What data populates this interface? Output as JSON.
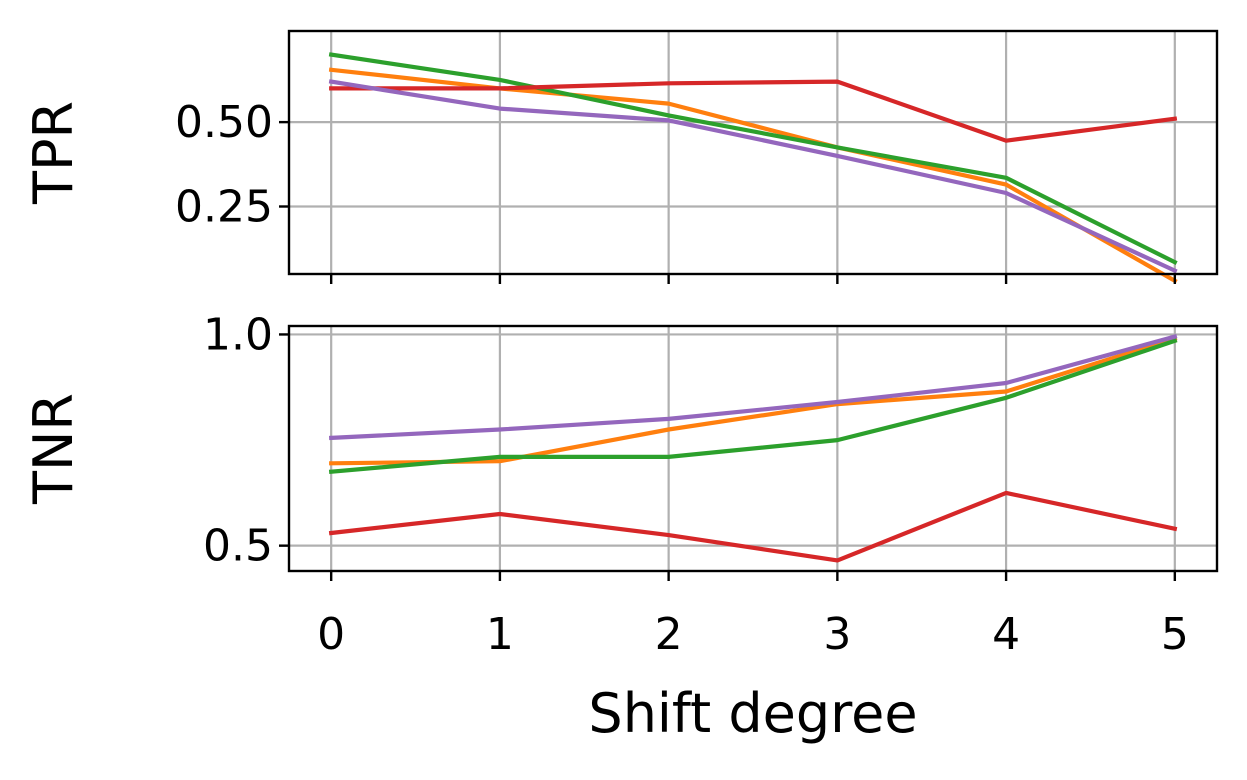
{
  "chart_data": {
    "type": "line",
    "x": [
      0,
      1,
      2,
      3,
      4,
      5
    ],
    "xlabel": "Shift degree",
    "xlim": [
      -0.25,
      5.25
    ],
    "x_ticks": [
      "0",
      "1",
      "2",
      "3",
      "4",
      "5"
    ],
    "grid": true,
    "legend": "none",
    "panels": [
      {
        "ylabel": "TPR",
        "ylim": [
          0.05,
          0.77
        ],
        "y_ticks": [
          {
            "value": 0.25,
            "label": "0.25"
          },
          {
            "value": 0.5,
            "label": "0.50"
          }
        ],
        "series": [
          {
            "color": "#ff7f0e",
            "values": [
              0.655,
              0.6,
              0.555,
              0.425,
              0.315,
              0.03
            ]
          },
          {
            "color": "#2ca02c",
            "values": [
              0.7,
              0.625,
              0.52,
              0.425,
              0.335,
              0.085
            ]
          },
          {
            "color": "#d62728",
            "values": [
              0.6,
              0.6,
              0.615,
              0.62,
              0.445,
              0.51
            ]
          },
          {
            "color": "#9467bd",
            "values": [
              0.62,
              0.54,
              0.505,
              0.4,
              0.29,
              0.06
            ]
          }
        ]
      },
      {
        "ylabel": "TNR",
        "ylim": [
          0.44,
          1.02
        ],
        "y_ticks": [
          {
            "value": 0.5,
            "label": "0.5"
          },
          {
            "value": 1.0,
            "label": "1.0"
          }
        ],
        "series": [
          {
            "color": "#ff7f0e",
            "values": [
              0.695,
              0.7,
              0.775,
              0.835,
              0.865,
              0.99
            ]
          },
          {
            "color": "#2ca02c",
            "values": [
              0.675,
              0.71,
              0.71,
              0.75,
              0.85,
              0.985
            ]
          },
          {
            "color": "#d62728",
            "values": [
              0.53,
              0.575,
              0.525,
              0.465,
              0.625,
              0.54
            ]
          },
          {
            "color": "#9467bd",
            "values": [
              0.755,
              0.775,
              0.8,
              0.84,
              0.885,
              0.995
            ]
          }
        ]
      }
    ]
  }
}
